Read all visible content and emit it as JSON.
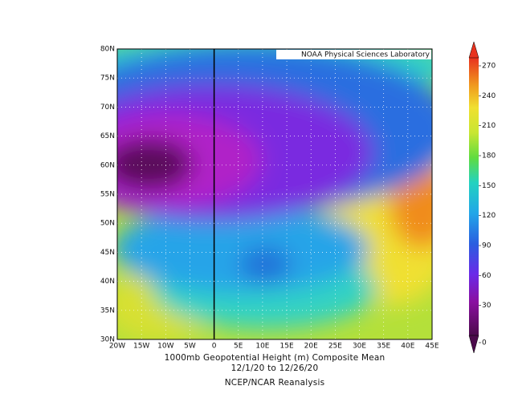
{
  "map": {
    "credit": "NOAA Physical Sciences Laboratory",
    "lon_labels": [
      "20W",
      "15W",
      "10W",
      "5W",
      "0",
      "5E",
      "10E",
      "15E",
      "20E",
      "25E",
      "30E",
      "35E",
      "40E",
      "45E"
    ],
    "lat_labels": [
      "80N",
      "75N",
      "70N",
      "65N",
      "60N",
      "55N",
      "50N",
      "45N",
      "40N",
      "35N",
      "30N"
    ]
  },
  "colorbar": {
    "ticks": [
      270,
      240,
      210,
      180,
      150,
      120,
      90,
      60,
      30,
      0
    ]
  },
  "caption": {
    "title": "1000mb Geopotential Height (m) Composite Mean",
    "dates": "12/1/20  to 12/26/20",
    "source": "NCEP/NCAR Reanalysis"
  }
}
